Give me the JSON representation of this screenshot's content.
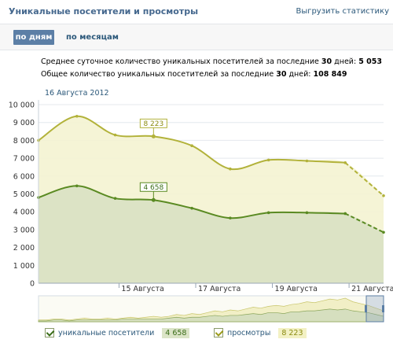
{
  "header": {
    "title": "Уникальные посетители и просмотры",
    "export_link": "Выгрузить статистику"
  },
  "tabs": [
    {
      "label": "по дням",
      "active": true
    },
    {
      "label": "по месяцам",
      "active": false
    }
  ],
  "summary": {
    "line1_text": "Среднее суточное количество уникальных посетителей за последние",
    "line1_days": "30",
    "line1_suffix": "дней:",
    "line1_value": "5 053",
    "line2_text": "Общее количество уникальных посетителей за последние",
    "line2_days": "30",
    "line2_suffix": "дней:",
    "line2_value": "108 849"
  },
  "chart_data": {
    "type": "area",
    "hover_date": "16 Августа 2012",
    "ylim": [
      0,
      10000
    ],
    "y_ticks": [
      "0",
      "1 000",
      "2 000",
      "3 000",
      "4 000",
      "5 000",
      "6 000",
      "7 000",
      "8 000",
      "9 000",
      "10 000"
    ],
    "x_tick_labels": [
      "15 Августа",
      "17 Августа",
      "19 Августа",
      "21 Августа"
    ],
    "x_tick_days": [
      15,
      17,
      19,
      21
    ],
    "x": [
      12.9,
      13.9,
      14.9,
      15.9,
      16.9,
      17.9,
      18.9,
      19.9,
      20.9,
      21.9
    ],
    "series": [
      {
        "name": "просмотры",
        "color": "#b2b23a",
        "fill": "#f4f3d2",
        "values": [
          8000,
          9350,
          8300,
          8223,
          7700,
          6400,
          6900,
          6850,
          6750,
          4900
        ]
      },
      {
        "name": "уникальные посетители",
        "color": "#5a8a22",
        "fill": "#d9e1c3",
        "values": [
          4800,
          5450,
          4750,
          4658,
          4200,
          3650,
          3950,
          3950,
          3900,
          2850
        ]
      }
    ],
    "hover_index": 3,
    "hover_labels": [
      "8 223",
      "4 658"
    ],
    "grid": true
  },
  "legend": {
    "items": [
      {
        "label": "уникальные посетители",
        "value": "4 658"
      },
      {
        "label": "просмотры",
        "value": "8 223"
      }
    ]
  }
}
